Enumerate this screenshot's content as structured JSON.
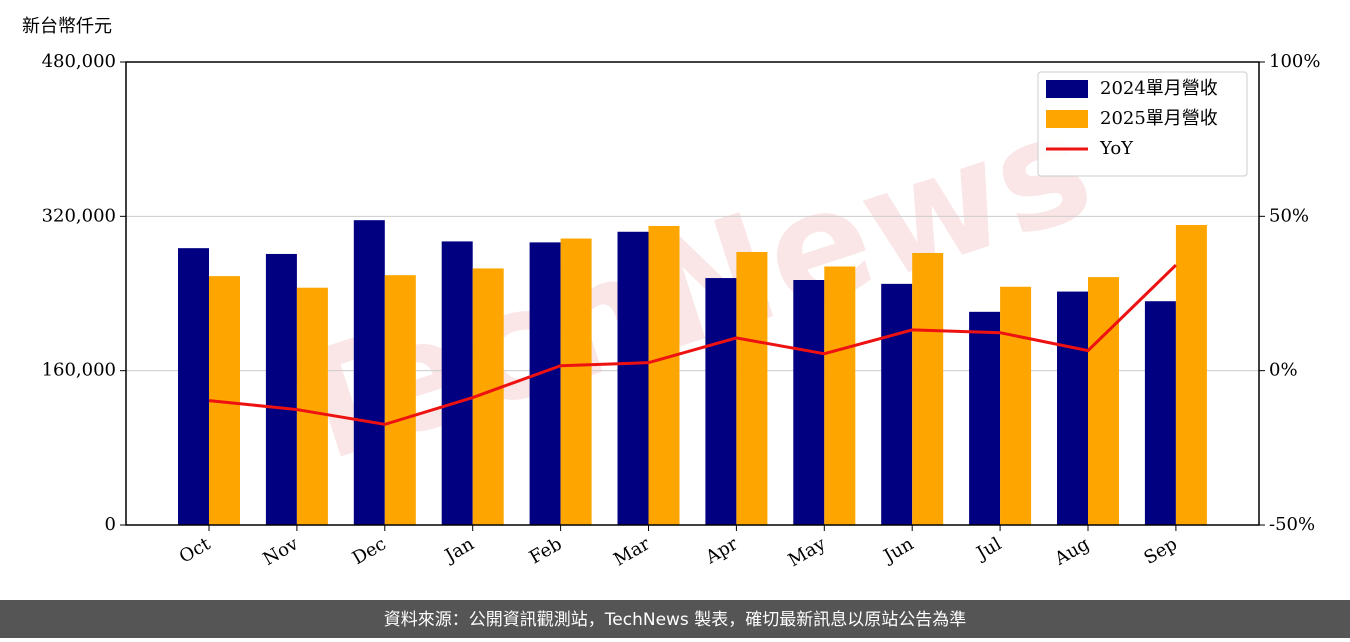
{
  "chart_data": {
    "type": "bar",
    "y_axis_label": "新台幣仟元",
    "watermark": "TechNews",
    "footer": "資料來源：公開資訊觀測站，TechNews 製表，確切最新訊息以原站公告為準",
    "categories": [
      "Oct",
      "Nov",
      "Dec",
      "Jan",
      "Feb",
      "Mar",
      "Apr",
      "May",
      "Jun",
      "Jul",
      "Aug",
      "Sep"
    ],
    "series": [
      {
        "name": "2024單月營收",
        "color": "#000080",
        "type": "bar",
        "values": [
          287000,
          281000,
          316000,
          294000,
          293000,
          304000,
          256000,
          254000,
          250000,
          221000,
          242000,
          232000
        ]
      },
      {
        "name": "2025單月營收",
        "color": "#ffa500",
        "type": "bar",
        "values": [
          258000,
          246000,
          259000,
          266000,
          297000,
          310000,
          283000,
          268000,
          282000,
          247000,
          257000,
          311000
        ]
      },
      {
        "name": "YoY",
        "color": "#ee1111",
        "type": "line",
        "axis": "y2",
        "values": [
          -9.7,
          -12.6,
          -17.4,
          -8.7,
          1.6,
          2.6,
          10.6,
          5.5,
          13.2,
          12.3,
          6.5,
          34.2
        ]
      }
    ],
    "ylim": [
      0,
      480000
    ],
    "yticks": [
      0,
      {
        "value": 160000,
        "label": "160,000"
      },
      {
        "value": 320000,
        "label": "320,000"
      },
      {
        "value": 480000,
        "label": "480,000"
      }
    ],
    "y2lim": [
      -50,
      100
    ],
    "y2ticks": [
      {
        "value": -50,
        "label": "-50%"
      },
      {
        "value": 0,
        "label": "0%"
      },
      {
        "value": 50,
        "label": "50%"
      },
      {
        "value": 100,
        "label": "100%"
      }
    ],
    "grid": true,
    "legend": "upper right"
  }
}
